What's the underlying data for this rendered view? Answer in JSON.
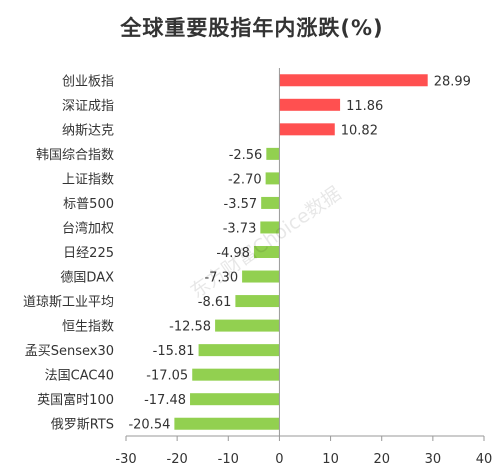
{
  "chart_data": {
    "type": "bar",
    "orientation": "horizontal",
    "title": "全球重要股指年内涨跌(%)",
    "categories": [
      "创业板指",
      "深证成指",
      "纳斯达克",
      "韩国综合指数",
      "上证指数",
      "标普500",
      "台湾加权",
      "日经225",
      "德国DAX",
      "道琼斯工业平均",
      "恒生指数",
      "孟买Sensex30",
      "法国CAC40",
      "英国富时100",
      "俄罗斯RTS"
    ],
    "values": [
      28.99,
      11.86,
      10.82,
      -2.56,
      -2.7,
      -3.57,
      -3.73,
      -4.98,
      -7.3,
      -8.61,
      -12.58,
      -15.81,
      -17.05,
      -17.48,
      -20.54
    ],
    "value_labels": [
      "28.99",
      "11.86",
      "10.82",
      "-2.56",
      "-2.70",
      "-3.57",
      "-3.73",
      "-4.98",
      "-7.30",
      "-8.61",
      "-12.58",
      "-15.81",
      "-17.05",
      "-17.48",
      "-20.54"
    ],
    "xlim": [
      -30,
      40
    ],
    "xticks": [
      "-30",
      "-20",
      "-10",
      "0",
      "10",
      "20",
      "30",
      "40"
    ],
    "grid": false,
    "colors": {
      "positive": "#ff5050",
      "negative": "#92d050",
      "axis": "#999999",
      "text": "#333333"
    }
  },
  "watermark": "东方财富Choice数据"
}
